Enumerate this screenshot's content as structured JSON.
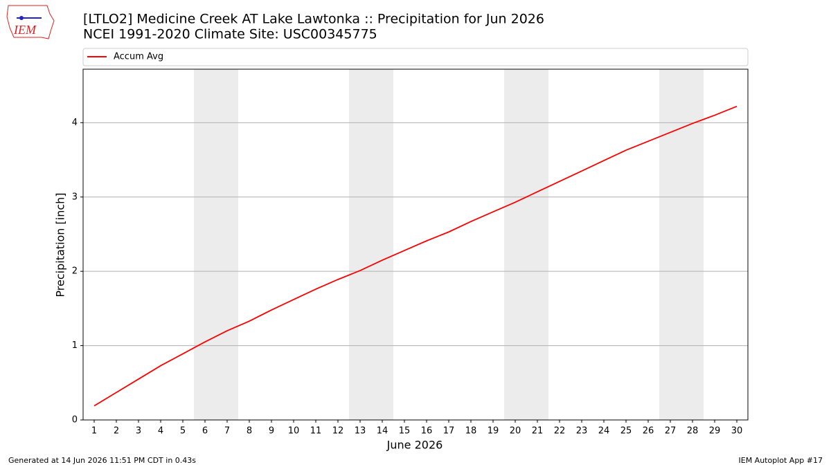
{
  "chart_data": {
    "type": "line",
    "title": "[LTLO2] Medicine Creek  AT Lake Lawtonka :: Precipitation for Jun 2026",
    "subtitle": "NCEI 1991-2020 Climate Site: USC00345775",
    "x_label": "June 2026",
    "y_label": "Precipitation [inch]",
    "x": [
      1,
      2,
      3,
      4,
      5,
      6,
      7,
      8,
      9,
      10,
      11,
      12,
      13,
      14,
      15,
      16,
      17,
      18,
      19,
      20,
      21,
      22,
      23,
      24,
      25,
      26,
      27,
      28,
      29,
      30
    ],
    "series": [
      {
        "name": "Accum Avg",
        "color": "#ff0000",
        "values": [
          0.19,
          0.37,
          0.55,
          0.73,
          0.89,
          1.05,
          1.2,
          1.33,
          1.48,
          1.62,
          1.76,
          1.89,
          2.01,
          2.15,
          2.28,
          2.41,
          2.53,
          2.67,
          2.8,
          2.93,
          3.07,
          3.21,
          3.35,
          3.49,
          3.63,
          3.75,
          3.87,
          3.99,
          4.1,
          4.22
        ]
      }
    ],
    "xlim": [
      0.5,
      30.5
    ],
    "ylim": [
      0,
      4.72
    ],
    "xticks": [
      1,
      2,
      3,
      4,
      5,
      6,
      7,
      8,
      9,
      10,
      11,
      12,
      13,
      14,
      15,
      16,
      17,
      18,
      19,
      20,
      21,
      22,
      23,
      24,
      25,
      26,
      27,
      28,
      29,
      30
    ],
    "yticks": [
      0,
      1,
      2,
      3,
      4
    ],
    "grid": true,
    "shaded_spans": [
      [
        5.5,
        7.5
      ],
      [
        12.5,
        14.5
      ],
      [
        19.5,
        21.5
      ],
      [
        26.5,
        28.5
      ]
    ],
    "shade_color": "#ececec",
    "legend": "top"
  },
  "logo": "IEM",
  "footer": {
    "left": "Generated at 14 Jun 2026 11:51 PM CDT in 0.43s",
    "right": "IEM Autoplot App #17"
  }
}
